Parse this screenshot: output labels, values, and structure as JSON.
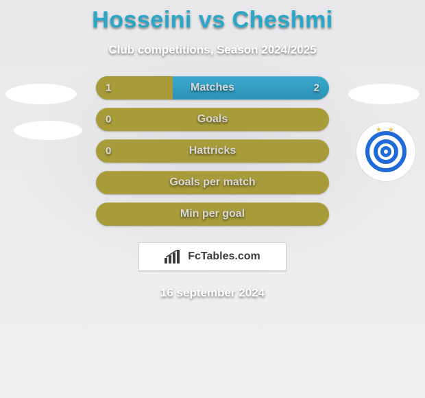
{
  "header": {
    "title": "Hosseini vs Cheshmi",
    "subtitle": "Club competitions, Season 2024/2025"
  },
  "colors": {
    "accent_teal": "#2aa6c9",
    "bar_olive": "#a89b3a",
    "bar_blue": "#2b93b6",
    "text_light": "#d7d7d7",
    "badge_blue": "#1f6bd8",
    "star_gold": "#e6c34a",
    "background_top": "#e8e8ea",
    "background_bottom": "#f0f0f2"
  },
  "stats": {
    "rows": [
      {
        "label": "Matches",
        "left": "1",
        "right": "2",
        "left_pct": 33,
        "split": true
      },
      {
        "label": "Goals",
        "left": "0",
        "right": "",
        "left_pct": 100,
        "split": false
      },
      {
        "label": "Hattricks",
        "left": "0",
        "right": "",
        "left_pct": 100,
        "split": false
      },
      {
        "label": "Goals per match",
        "left": "",
        "right": "",
        "left_pct": 100,
        "split": false
      },
      {
        "label": "Min per goal",
        "left": "",
        "right": "",
        "left_pct": 100,
        "split": false
      }
    ]
  },
  "brand": {
    "label": "FcTables.com"
  },
  "footer": {
    "date": "16 september 2024"
  },
  "right_badge": {
    "name": "esteghlal-badge",
    "stars": "★ ★"
  }
}
